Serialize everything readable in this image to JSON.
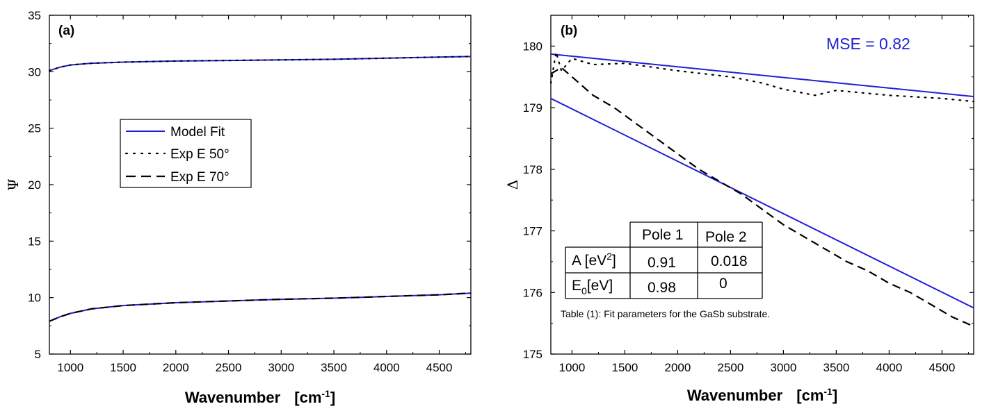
{
  "colors": {
    "model": "#1f1fd6",
    "exp": "#000000",
    "axis": "#000000"
  },
  "chart_data": [
    {
      "panel_label": "(a)",
      "type": "line",
      "xlabel": "Wavenumber",
      "xunit": "[cm",
      "xunit_sup": "-1",
      "xunit_end": "]",
      "ylabel": "Ψ",
      "xlim": [
        800,
        4800
      ],
      "ylim": [
        5,
        35
      ],
      "xticks": [
        1000,
        1500,
        2000,
        2500,
        3000,
        3500,
        4000,
        4500
      ],
      "yticks": [
        5,
        10,
        15,
        20,
        25,
        30,
        35
      ],
      "legend": {
        "position": "center-left",
        "entries": [
          {
            "label": "Model Fit",
            "style": "solid"
          },
          {
            "label": "Exp E 50°",
            "style": "dotted"
          },
          {
            "label": "Exp E 70°",
            "style": "dashed"
          }
        ]
      },
      "series": [
        {
          "name": "Model Fit (50°)",
          "style": "solid",
          "x": [
            800,
            900,
            1000,
            1200,
            1500,
            2000,
            2500,
            3000,
            3500,
            4000,
            4500,
            4800
          ],
          "y": [
            30.1,
            30.4,
            30.6,
            30.75,
            30.85,
            30.95,
            31.0,
            31.05,
            31.1,
            31.2,
            31.3,
            31.35
          ]
        },
        {
          "name": "Exp E 50°",
          "style": "dotted",
          "x": [
            800,
            900,
            1000,
            1200,
            1500,
            2000,
            2500,
            3000,
            3500,
            4000,
            4500,
            4800
          ],
          "y": [
            30.1,
            30.4,
            30.6,
            30.75,
            30.85,
            30.95,
            31.0,
            31.05,
            31.1,
            31.2,
            31.3,
            31.35
          ]
        },
        {
          "name": "Model Fit (70°)",
          "style": "solid",
          "x": [
            800,
            900,
            1000,
            1200,
            1500,
            2000,
            2500,
            3000,
            3500,
            4000,
            4500,
            4800
          ],
          "y": [
            7.9,
            8.3,
            8.6,
            9.0,
            9.3,
            9.55,
            9.7,
            9.85,
            9.95,
            10.1,
            10.25,
            10.4
          ]
        },
        {
          "name": "Exp E 70°",
          "style": "dashed",
          "x": [
            800,
            900,
            1000,
            1200,
            1500,
            2000,
            2500,
            3000,
            3500,
            4000,
            4500,
            4800
          ],
          "y": [
            7.9,
            8.3,
            8.6,
            9.0,
            9.3,
            9.55,
            9.7,
            9.85,
            9.95,
            10.1,
            10.25,
            10.4
          ]
        }
      ]
    },
    {
      "panel_label": "(b)",
      "type": "line",
      "xlabel": "Wavenumber",
      "xunit": "[cm",
      "xunit_sup": "-1",
      "xunit_end": "]",
      "ylabel": "Δ",
      "xlim": [
        800,
        4800
      ],
      "ylim": [
        175,
        180.5
      ],
      "xticks": [
        1000,
        1500,
        2000,
        2500,
        3000,
        3500,
        4000,
        4500
      ],
      "yticks": [
        175,
        176,
        177,
        178,
        179,
        180
      ],
      "annotation": "MSE = 0.82",
      "series": [
        {
          "name": "Model Fit (50°)",
          "style": "solid",
          "x": [
            800,
            4800
          ],
          "y": [
            179.87,
            179.18
          ]
        },
        {
          "name": "Exp E 50°",
          "style": "dotted",
          "x": [
            800,
            850,
            900,
            1000,
            1200,
            1500,
            2000,
            2500,
            2800,
            3000,
            3300,
            3500,
            4000,
            4500,
            4800
          ],
          "y": [
            179.4,
            179.9,
            179.6,
            179.8,
            179.7,
            179.72,
            179.6,
            179.5,
            179.4,
            179.3,
            179.2,
            179.28,
            179.2,
            179.15,
            179.1
          ]
        },
        {
          "name": "Model Fit (70°)",
          "style": "solid",
          "x": [
            800,
            4800
          ],
          "y": [
            179.15,
            175.75
          ]
        },
        {
          "name": "Exp E 70°",
          "style": "dashed",
          "x": [
            800,
            900,
            1000,
            1100,
            1200,
            1400,
            1600,
            1800,
            2000,
            2200,
            2400,
            2600,
            2800,
            3000,
            3200,
            3400,
            3600,
            3800,
            4000,
            4200,
            4400,
            4600,
            4800
          ],
          "y": [
            179.55,
            179.65,
            179.5,
            179.35,
            179.2,
            179.0,
            178.75,
            178.5,
            178.25,
            178.0,
            177.8,
            177.6,
            177.35,
            177.1,
            176.9,
            176.7,
            176.5,
            176.35,
            176.15,
            176.0,
            175.8,
            175.6,
            175.45
          ]
        }
      ],
      "table": {
        "col_headers": [
          "Pole 1",
          "Pole 2"
        ],
        "rows": [
          {
            "label": "A [eV",
            "label_sup": "2",
            "label_end": "]",
            "values": [
              "0.91",
              "0.018"
            ]
          },
          {
            "label": "E",
            "label_sub": "0",
            "label_end": "[eV]",
            "values": [
              "0.98",
              "0"
            ]
          }
        ],
        "caption": "Table (1): Fit parameters for the GaSb substrate."
      }
    }
  ]
}
